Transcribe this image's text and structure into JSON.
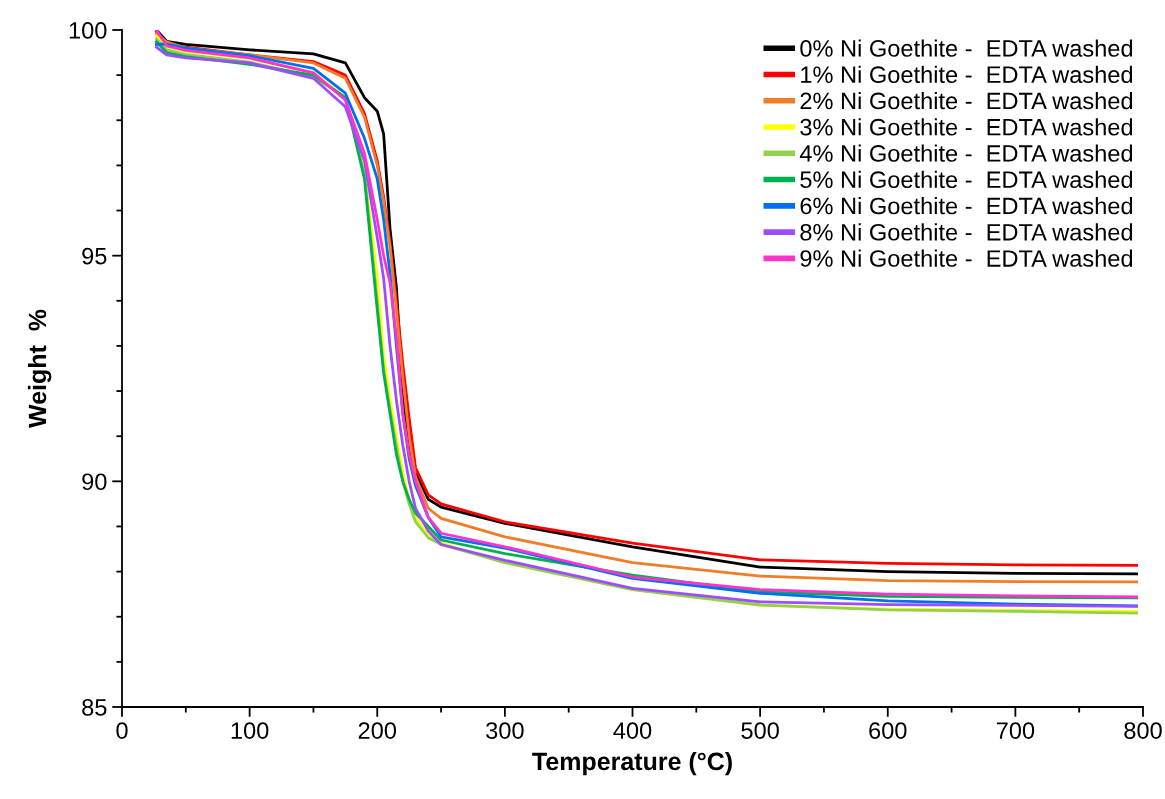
{
  "chart_data": {
    "type": "line",
    "xlabel": "Temperature (°C)",
    "ylabel": "Weight  %",
    "x": [
      27,
      35,
      50,
      100,
      150,
      175,
      190,
      200,
      205,
      210,
      215,
      220,
      225,
      230,
      240,
      250,
      300,
      400,
      500,
      600,
      700,
      795
    ],
    "xlim": [
      0,
      800
    ],
    "xticks": [
      0,
      100,
      200,
      300,
      400,
      500,
      600,
      700,
      800
    ],
    "ylim": [
      85,
      100
    ],
    "yticks": [
      85,
      90,
      95,
      100
    ],
    "grid": false,
    "legend": "top right",
    "marker": "none",
    "line_style": "solid",
    "series": [
      {
        "name": "0% Ni Goethite -  EDTA washed",
        "color": "#000000",
        "values": [
          100,
          99.75,
          99.68,
          99.56,
          99.47,
          99.27,
          98.5,
          98.2,
          97.7,
          95.6,
          94.3,
          92.0,
          90.8,
          90.2,
          89.6,
          89.43,
          89.07,
          88.55,
          88.1,
          88.0,
          87.96,
          87.95
        ]
      },
      {
        "name": "1% Ni Goethite -  EDTA washed",
        "color": "#ff0000",
        "values": [
          99.96,
          99.7,
          99.62,
          99.45,
          99.3,
          99.0,
          98.15,
          97.1,
          96.3,
          95.3,
          94.0,
          92.6,
          91.4,
          90.3,
          89.7,
          89.5,
          89.1,
          88.63,
          88.26,
          88.18,
          88.15,
          88.14
        ]
      },
      {
        "name": "2% Ni Goethite -  EDTA washed",
        "color": "#f07d28",
        "values": [
          99.92,
          99.74,
          99.6,
          99.45,
          99.27,
          98.93,
          98.07,
          97.0,
          96.2,
          95.2,
          93.8,
          92.3,
          91.0,
          90.1,
          89.4,
          89.18,
          88.77,
          88.2,
          87.9,
          87.8,
          87.78,
          87.77
        ]
      },
      {
        "name": "3% Ni Goethite -  EDTA washed",
        "color": "#ffff00",
        "values": [
          99.86,
          99.63,
          99.53,
          99.37,
          99.05,
          98.5,
          96.9,
          94.5,
          92.8,
          91.8,
          91.0,
          90.2,
          89.6,
          89.2,
          88.8,
          88.63,
          88.2,
          87.6,
          87.26,
          87.17,
          87.14,
          87.12
        ]
      },
      {
        "name": "4% Ni Goethite -  EDTA washed",
        "color": "#92d050",
        "values": [
          99.8,
          99.56,
          99.46,
          99.29,
          98.96,
          98.5,
          96.8,
          94.0,
          92.5,
          91.6,
          90.8,
          90.0,
          89.5,
          89.1,
          88.75,
          88.6,
          88.2,
          87.6,
          87.26,
          87.15,
          87.12,
          87.08
        ]
      },
      {
        "name": "5% Ni Goethite -  EDTA washed",
        "color": "#00b050",
        "values": [
          99.74,
          99.5,
          99.41,
          99.24,
          99.0,
          98.5,
          96.7,
          93.8,
          92.4,
          91.5,
          90.6,
          90.0,
          89.6,
          89.3,
          89.0,
          88.7,
          88.4,
          87.92,
          87.55,
          87.45,
          87.43,
          87.42
        ]
      },
      {
        "name": "6% Ni Goethite -  EDTA washed",
        "color": "#0070f0",
        "values": [
          99.68,
          99.69,
          99.6,
          99.43,
          99.15,
          98.6,
          97.6,
          96.7,
          95.8,
          94.6,
          93.0,
          91.5,
          90.5,
          89.9,
          89.2,
          88.77,
          88.52,
          87.85,
          87.52,
          87.35,
          87.28,
          87.24
        ]
      },
      {
        "name": "8% Ni Goethite -  EDTA washed",
        "color": "#9b4dff",
        "values": [
          99.62,
          99.45,
          99.38,
          99.27,
          98.93,
          98.3,
          97.1,
          95.4,
          94.5,
          93.0,
          91.8,
          90.8,
          90.0,
          89.4,
          88.9,
          88.6,
          88.25,
          87.63,
          87.33,
          87.27,
          87.25,
          87.23
        ]
      },
      {
        "name": "9% Ni Goethite -  EDTA washed",
        "color": "#ff33cc",
        "values": [
          100,
          99.65,
          99.55,
          99.38,
          99.05,
          98.45,
          97.27,
          95.8,
          95.0,
          94.4,
          93.2,
          91.5,
          90.6,
          90.0,
          89.2,
          88.85,
          88.55,
          87.88,
          87.6,
          87.5,
          87.46,
          87.44
        ]
      }
    ]
  }
}
